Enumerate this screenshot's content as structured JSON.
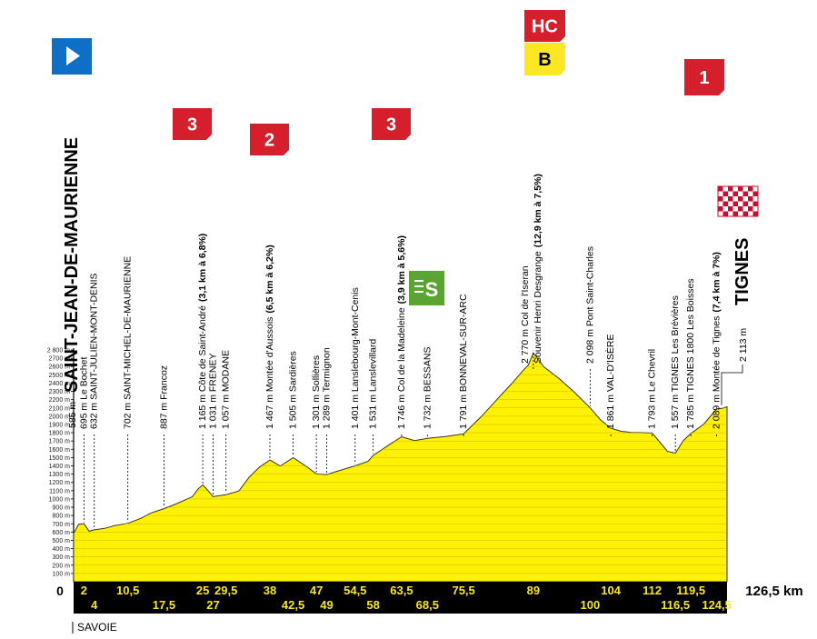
{
  "chart_data": {
    "type": "area",
    "xunit": "km",
    "yunit": "m",
    "ylim": [
      0,
      2800
    ],
    "xlim": [
      0,
      126.5
    ],
    "xstart_label": "0",
    "xend_label": "126,5 km",
    "ytick_labels": [
      "100 m",
      "200 m",
      "300 m",
      "400 m",
      "500 m",
      "600 m",
      "700 m",
      "800 m",
      "900 m",
      "1000 m",
      "1100 m",
      "1200 m",
      "1300 m",
      "1400 m",
      "1500 m",
      "1600 m",
      "1700 m",
      "1800 m",
      "1900 m",
      "2000 m",
      "2100 m",
      "2200 m",
      "2300 m",
      "2400 m",
      "2500 m",
      "2600 m",
      "2700 m",
      "2 800 m"
    ],
    "profile": {
      "x": [
        0,
        1,
        2,
        3,
        4,
        6,
        8,
        10.5,
        13,
        15,
        17.5,
        20,
        23,
        24,
        25,
        26,
        27,
        29.5,
        32,
        34,
        36,
        38,
        40,
        42.5,
        45,
        47,
        49,
        51,
        54.5,
        57,
        58,
        61,
        63.5,
        66,
        68.5,
        72,
        75.5,
        79,
        82,
        85,
        87,
        88,
        89,
        91,
        94,
        97,
        100,
        102,
        104,
        106,
        108,
        110,
        112,
        114,
        115,
        116.5,
        118,
        119.5,
        122,
        124.5,
        125.5,
        126.5
      ],
      "y": [
        585,
        690,
        695,
        610,
        632,
        650,
        680,
        702,
        760,
        830,
        887,
        950,
        1030,
        1110,
        1165,
        1100,
        1031,
        1057,
        1100,
        1260,
        1380,
        1467,
        1400,
        1505,
        1400,
        1301,
        1289,
        1330,
        1401,
        1460,
        1531,
        1650,
        1746,
        1700,
        1732,
        1760,
        1791,
        2000,
        2200,
        2400,
        2550,
        2620,
        2770,
        2600,
        2450,
        2280,
        2098,
        1960,
        1861,
        1820,
        1800,
        1795,
        1793,
        1650,
        1580,
        1557,
        1700,
        1785,
        1900,
        2089,
        2100,
        2113
      ]
    },
    "distance_markers_top": [
      "2",
      "10,5",
      "25",
      "29,5",
      "38",
      "47",
      "54,5",
      "63,5",
      "75,5",
      "89",
      "104",
      "112",
      "119,5"
    ],
    "distance_markers_bottom": [
      "4",
      "17,5",
      "27",
      "42,5",
      "49",
      "58",
      "68,5",
      "100",
      "116,5",
      "124,5"
    ],
    "distance_positions_top": [
      2,
      10.5,
      25,
      29.5,
      38,
      47,
      54.5,
      63.5,
      75.5,
      89,
      104,
      112,
      119.5
    ],
    "distance_positions_bottom": [
      4,
      17.5,
      27,
      42.5,
      49,
      58,
      68.5,
      100,
      116.5,
      124.5
    ],
    "places": [
      {
        "km": 2,
        "label": "695 m Le Bochet"
      },
      {
        "km": 4,
        "label": "632 m SAINT-JULIEN-MONT-DENIS"
      },
      {
        "km": 10.5,
        "label": "702 m SAINT-MICHEL-DE-MAURIENNE"
      },
      {
        "km": 17.5,
        "label": "887 m Francoz"
      },
      {
        "km": 25,
        "label": "1 165 m Côte de Saint-André",
        "climb": "(3,1 km à 6,8%)"
      },
      {
        "km": 27,
        "label": "1 031 m FRENEY"
      },
      {
        "km": 29.5,
        "label": "1 057 m MODANE"
      },
      {
        "km": 38,
        "label": "1 467 m Montée d'Aussois",
        "climb": "(6,5 km à 6,2%)"
      },
      {
        "km": 42.5,
        "label": "1 505 m Sardières"
      },
      {
        "km": 47,
        "label": "1 301 m Sollières"
      },
      {
        "km": 49,
        "label": "1 289 m Termignon"
      },
      {
        "km": 54.5,
        "label": "1 401 m Lanslebourg-Mont-Cenis"
      },
      {
        "km": 58,
        "label": "1 531 m Lanslevillard"
      },
      {
        "km": 63.5,
        "label": "1 746 m Col de la Madeleine",
        "climb": "(3,9 km à 5,6%)"
      },
      {
        "km": 68.5,
        "label": "1 732 m BESSANS"
      },
      {
        "km": 75.5,
        "label": "1 791 m BONNEVAL-SUR-ARC"
      },
      {
        "km": 104,
        "label": "1 861 m VAL-D'ISÈRE"
      },
      {
        "km": 112,
        "label": "1 793 m Le Chevril"
      },
      {
        "km": 116.5,
        "label": "1 557 m TIGNES Les Brévières"
      },
      {
        "km": 119.5,
        "label": "1 785 m TIGNES 1800 Les Boisses"
      },
      {
        "km": 124.5,
        "label": "2 089 m Montée de Tignes",
        "climb": "(7,4 km à 7%)"
      }
    ],
    "iseran": {
      "km": 89,
      "line1": "2 770 m Col de l'Iseran",
      "line2": "Souvenir Henri Desgrange",
      "climb": "(12,9 km à 7,5%)"
    },
    "pont_saint_charles": {
      "km": 100,
      "label": "2 098 m Pont Saint-Charles"
    },
    "start": {
      "elev": "585 m",
      "name": "SAINT-JEAN-DE-MAURIENNE"
    },
    "finish": {
      "elev": "2 113 m",
      "name": "TIGNES"
    },
    "climb_badges": [
      {
        "km": 25,
        "text": "3",
        "color": "#d51f2c"
      },
      {
        "km": 38,
        "text": "2",
        "color": "#d51f2c"
      },
      {
        "km": 63.5,
        "text": "3",
        "color": "#d51f2c"
      },
      {
        "km": 89,
        "text": "HC",
        "color": "#d51f2c"
      },
      {
        "km": 89,
        "text": "B",
        "color": "#fde724"
      },
      {
        "km": 124.5,
        "text": "1",
        "color": "#d51f2c"
      }
    ],
    "sprint": {
      "km": 68.5,
      "text": "S",
      "color": "#5aa532"
    },
    "region": "SAVOIE",
    "colors": {
      "fill": "#fff200",
      "bar": "#000000",
      "bar_text": "#f8e71c",
      "start_flag": "#0f6fc6"
    }
  }
}
